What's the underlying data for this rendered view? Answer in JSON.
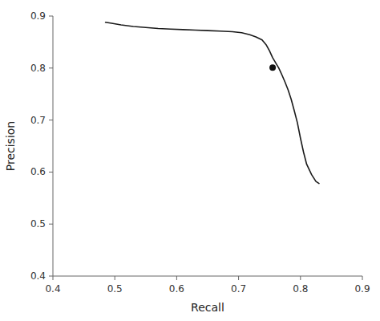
{
  "chart_data": {
    "type": "line",
    "xlabel": "Recall",
    "ylabel": "Precision",
    "xlim": [
      0.4,
      0.9
    ],
    "ylim": [
      0.4,
      0.9
    ],
    "xticks": [
      0.4,
      0.5,
      0.6,
      0.7,
      0.8,
      0.9
    ],
    "yticks": [
      0.4,
      0.5,
      0.6,
      0.7,
      0.8,
      0.9
    ],
    "grid": false,
    "series": [
      {
        "color": "#1a1a1a",
        "x": [
          0.485,
          0.495,
          0.51,
          0.53,
          0.55,
          0.57,
          0.59,
          0.61,
          0.63,
          0.65,
          0.67,
          0.69,
          0.705,
          0.718,
          0.728,
          0.738,
          0.745,
          0.75,
          0.755,
          0.76,
          0.765,
          0.77,
          0.775,
          0.78,
          0.785,
          0.79,
          0.795,
          0.8,
          0.805,
          0.81,
          0.818,
          0.825,
          0.83
        ],
        "values": [
          0.888,
          0.886,
          0.883,
          0.88,
          0.878,
          0.876,
          0.875,
          0.874,
          0.873,
          0.872,
          0.871,
          0.87,
          0.868,
          0.864,
          0.86,
          0.854,
          0.844,
          0.833,
          0.82,
          0.81,
          0.8,
          0.787,
          0.773,
          0.758,
          0.74,
          0.718,
          0.695,
          0.665,
          0.638,
          0.615,
          0.595,
          0.582,
          0.578
        ]
      },
      {
        "type": "scatter",
        "color": "#111111",
        "marker": "circle",
        "x": [
          0.755
        ],
        "values": [
          0.801
        ]
      }
    ]
  }
}
